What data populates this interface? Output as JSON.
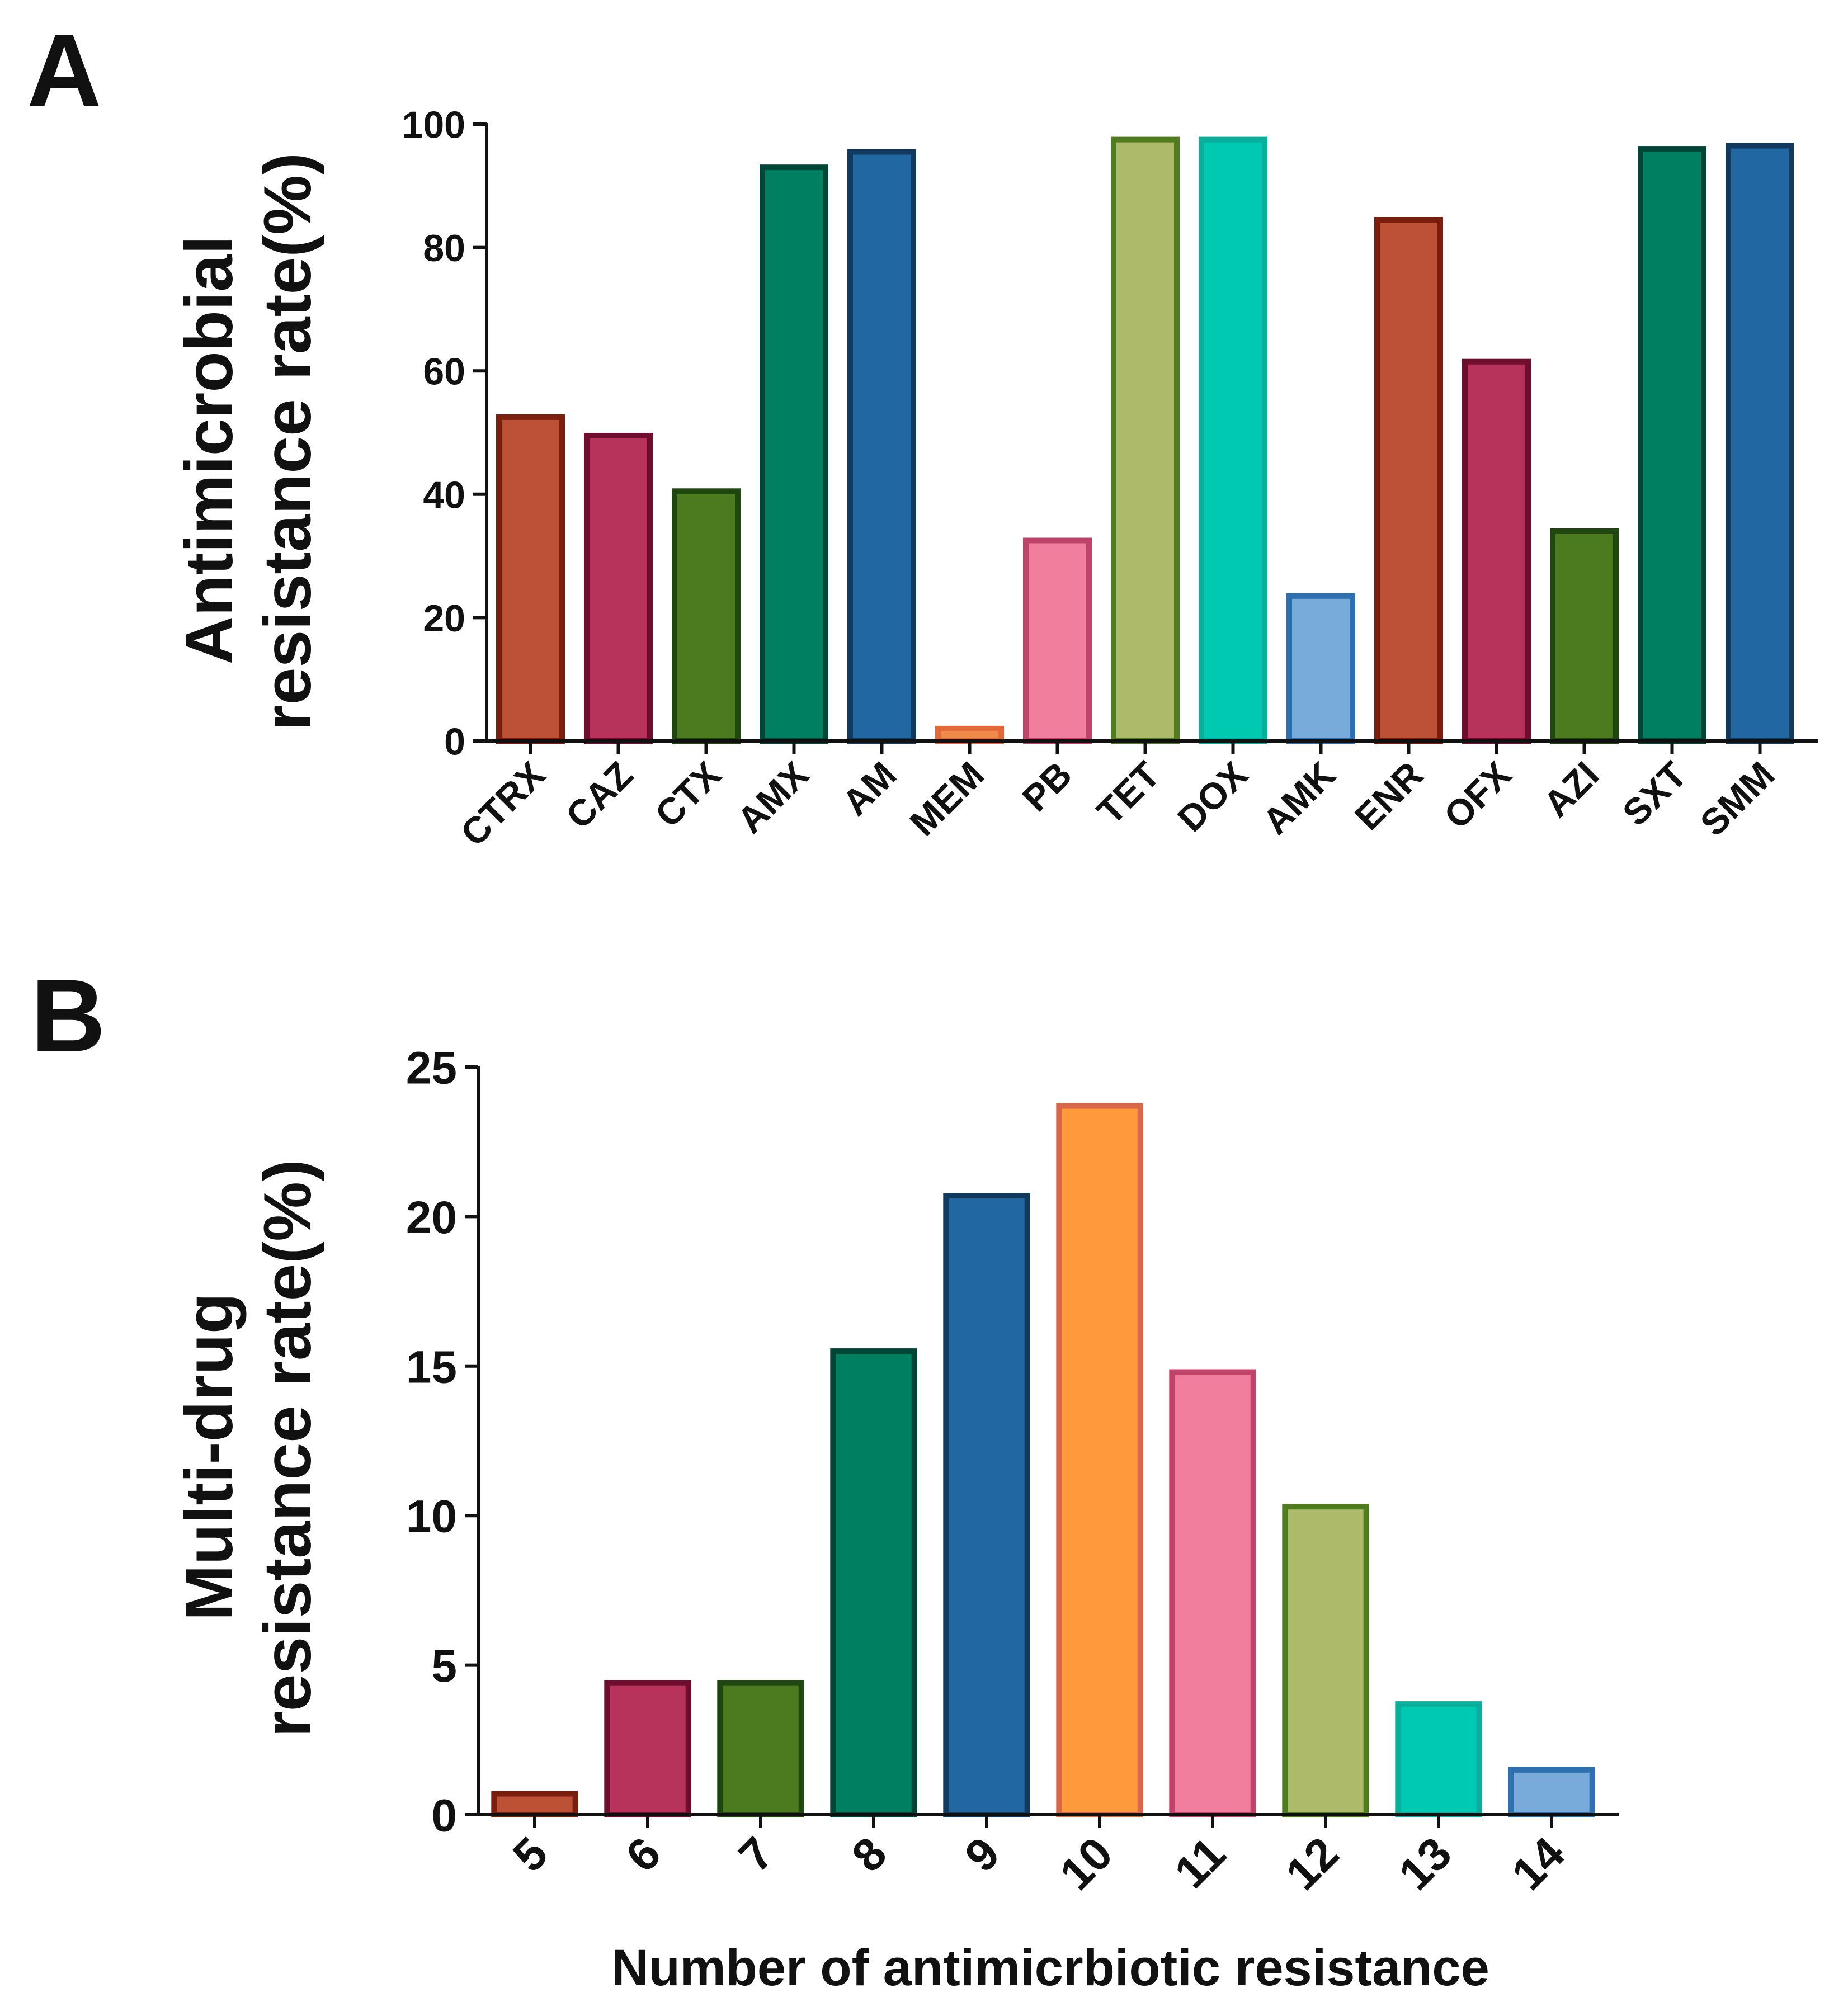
{
  "chart_data": [
    {
      "panel_label": "A",
      "type": "bar",
      "title": "",
      "ylabel_line1": "Antimicrobial",
      "ylabel_line2": "resistance rate(%)",
      "xlabel": "",
      "ylim": [
        0,
        100
      ],
      "yticks": [
        "0",
        "20",
        "40",
        "60",
        "80",
        "100"
      ],
      "categories": [
        "CTRX",
        "CAZ",
        "CTX",
        "AMX",
        "AM",
        "MEM",
        "PB",
        "TET",
        "DOX",
        "AMK",
        "ENR",
        "OFX",
        "AZI",
        "SXT",
        "SMM"
      ],
      "values": [
        52.5,
        49.5,
        40.5,
        93,
        95.5,
        2,
        32.5,
        97.5,
        97.5,
        23.5,
        84.5,
        61.5,
        34,
        96,
        96.5
      ],
      "fill_colors": [
        "#BD5136",
        "#B8335B",
        "#4C7A1F",
        "#007F61",
        "#2168A3",
        "#F08A4A",
        "#F17E9C",
        "#ADBA69",
        "#00C9B2",
        "#78AADA",
        "#BD5136",
        "#B8335B",
        "#4C7A1F",
        "#007F61",
        "#2168A3"
      ],
      "stroke_colors": [
        "#7A1F0E",
        "#6E0D2E",
        "#1F4710",
        "#004535",
        "#12395E",
        "#E06A3A",
        "#C0436A",
        "#4E7C1E",
        "#0AAE9A",
        "#2E6FB0",
        "#7A1F0E",
        "#6E0D2E",
        "#1F4710",
        "#004535",
        "#12395E"
      ],
      "grid": false
    },
    {
      "panel_label": "B",
      "type": "bar",
      "title": "",
      "ylabel_line1": "Multi-drug",
      "ylabel_line2": "resistance rate(%)",
      "xlabel": "Number of antimicrbiotic resistance",
      "ylim": [
        0,
        25
      ],
      "yticks": [
        "0",
        "5",
        "10",
        "15",
        "20",
        "25"
      ],
      "categories": [
        "5",
        "6",
        "7",
        "8",
        "9",
        "10",
        "11",
        "12",
        "13",
        "14"
      ],
      "values": [
        0.7,
        4.4,
        4.4,
        15.5,
        20.7,
        23.7,
        14.8,
        10.3,
        3.7,
        1.5
      ],
      "fill_colors": [
        "#BD5136",
        "#B8335B",
        "#4C7A1F",
        "#007F61",
        "#2168A3",
        "#FF9A3C",
        "#F17E9C",
        "#ADBA69",
        "#00C9B2",
        "#78AADA"
      ],
      "stroke_colors": [
        "#7A1F0E",
        "#6E0D2E",
        "#1F4710",
        "#004535",
        "#12395E",
        "#D9674A",
        "#C0436A",
        "#4E7C1E",
        "#0AAE9A",
        "#2E6FB0"
      ],
      "grid": false
    }
  ]
}
